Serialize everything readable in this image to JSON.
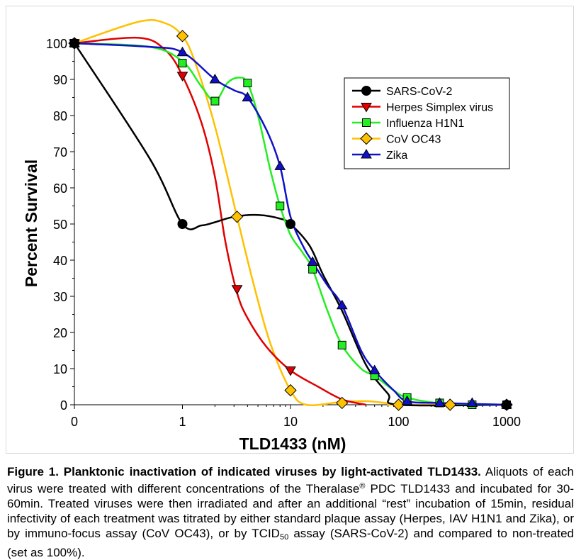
{
  "colors": {
    "SARS-CoV-2": "#000000",
    "Herpes Simplex  virus": "#e00000",
    "Influenza  H1N1": "#22ee22",
    "CoV OC43": "#ffc000",
    "Zika": "#1010c8"
  },
  "chart_data": {
    "type": "scatter",
    "xlabel": "TLD1433 (nM)",
    "ylabel": "Percent  Survival",
    "xscale": "log (0 shown at far left)",
    "xticks": [
      "0",
      "1",
      "10",
      "100",
      "1000"
    ],
    "yticks": [
      "0",
      "10",
      "20",
      "30",
      "40",
      "50",
      "60",
      "70",
      "80",
      "90",
      "100"
    ],
    "ylim": [
      0,
      100
    ],
    "legend_position": "upper right",
    "series": [
      {
        "name": "SARS-CoV-2",
        "marker": "circle",
        "points": [
          [
            0,
            100
          ],
          [
            1,
            50
          ],
          [
            10,
            50
          ],
          [
            1000,
            0
          ]
        ]
      },
      {
        "name": "Herpes Simplex  virus",
        "marker": "triangle-down",
        "points": [
          [
            0,
            100
          ],
          [
            1,
            91
          ],
          [
            3.2,
            32
          ],
          [
            10,
            9.5
          ]
        ]
      },
      {
        "name": "Influenza  H1N1",
        "marker": "square",
        "points": [
          [
            0,
            100
          ],
          [
            1,
            94.5
          ],
          [
            2,
            84
          ],
          [
            4,
            89
          ],
          [
            8,
            55
          ],
          [
            16,
            37.5
          ],
          [
            30,
            16.5
          ],
          [
            60,
            8
          ],
          [
            120,
            2
          ],
          [
            240,
            0.5
          ],
          [
            480,
            0
          ],
          [
            1000,
            0
          ]
        ]
      },
      {
        "name": "CoV OC43",
        "marker": "diamond",
        "points": [
          [
            0,
            100
          ],
          [
            1,
            102
          ],
          [
            3.2,
            52
          ],
          [
            10,
            4
          ],
          [
            30,
            0.5
          ],
          [
            100,
            0
          ],
          [
            300,
            0
          ],
          [
            1000,
            0
          ]
        ]
      },
      {
        "name": "Zika",
        "marker": "triangle-up",
        "points": [
          [
            0,
            100
          ],
          [
            1,
            97.5
          ],
          [
            2,
            90
          ],
          [
            4,
            85
          ],
          [
            8,
            66
          ],
          [
            16,
            39.5
          ],
          [
            30,
            27.5
          ],
          [
            60,
            9.5
          ],
          [
            120,
            1
          ],
          [
            240,
            0.5
          ],
          [
            480,
            0.5
          ],
          [
            1000,
            0
          ]
        ]
      }
    ],
    "curves": {
      "SARS-CoV-2": [
        [
          0,
          100
        ],
        [
          0.5,
          68
        ],
        [
          1,
          50
        ],
        [
          1.5,
          49.6
        ],
        [
          2,
          50.5
        ],
        [
          3,
          52
        ],
        [
          5,
          52.5
        ],
        [
          8,
          51.5
        ],
        [
          10,
          50
        ],
        [
          15,
          44
        ],
        [
          20,
          36
        ],
        [
          30,
          26
        ],
        [
          50,
          11
        ],
        [
          80,
          3
        ],
        [
          100,
          0
        ],
        [
          1000,
          0
        ]
      ],
      "Herpes Simplex  virus": [
        [
          0,
          100
        ],
        [
          0.4,
          101.5
        ],
        [
          0.7,
          98
        ],
        [
          1,
          91
        ],
        [
          1.5,
          78
        ],
        [
          2,
          63
        ],
        [
          2.5,
          45
        ],
        [
          3.2,
          31
        ],
        [
          4,
          24
        ],
        [
          6,
          16
        ],
        [
          10,
          9.5
        ],
        [
          18,
          5
        ],
        [
          30,
          1.5
        ],
        [
          50,
          0
        ]
      ],
      "Influenza  H1N1": [
        [
          0,
          100
        ],
        [
          0.5,
          99
        ],
        [
          1,
          95
        ],
        [
          1.5,
          88
        ],
        [
          2,
          84
        ],
        [
          2.6,
          89
        ],
        [
          3.3,
          90.5
        ],
        [
          4,
          89
        ],
        [
          5,
          80
        ],
        [
          6.5,
          65
        ],
        [
          8,
          55
        ],
        [
          10,
          47
        ],
        [
          13,
          42
        ],
        [
          16,
          37.5
        ],
        [
          22,
          26
        ],
        [
          30,
          16.5
        ],
        [
          45,
          10
        ],
        [
          60,
          8
        ],
        [
          90,
          4
        ],
        [
          120,
          2
        ],
        [
          240,
          0.5
        ],
        [
          1000,
          0
        ]
      ],
      "CoV OC43": [
        [
          0,
          100
        ],
        [
          0.4,
          106
        ],
        [
          0.7,
          105.5
        ],
        [
          1,
          102
        ],
        [
          1.3,
          95
        ],
        [
          2,
          77
        ],
        [
          3.2,
          52
        ],
        [
          4.5,
          34
        ],
        [
          6.5,
          17
        ],
        [
          10,
          4
        ],
        [
          14,
          0
        ],
        [
          30,
          0.8
        ],
        [
          50,
          1
        ],
        [
          80,
          0.4
        ],
        [
          100,
          0
        ],
        [
          1000,
          0
        ]
      ],
      "Zika": [
        [
          0,
          100
        ],
        [
          0.5,
          99
        ],
        [
          1,
          97.5
        ],
        [
          2,
          90
        ],
        [
          3,
          87
        ],
        [
          4,
          85
        ],
        [
          6,
          76
        ],
        [
          8,
          66
        ],
        [
          10,
          52
        ],
        [
          13,
          44
        ],
        [
          16,
          39.5
        ],
        [
          22,
          33
        ],
        [
          30,
          27.5
        ],
        [
          45,
          15
        ],
        [
          60,
          9.5
        ],
        [
          90,
          4
        ],
        [
          120,
          1
        ],
        [
          240,
          0.5
        ],
        [
          1000,
          0
        ]
      ]
    }
  },
  "legend_order": [
    "SARS-CoV-2",
    "Herpes Simplex  virus",
    "Influenza  H1N1",
    "CoV OC43",
    "Zika"
  ],
  "caption": {
    "title": "Figure 1. Planktonic inactivation of indicated viruses by light-activated TLD1433.",
    "text_a": " Aliquots of each virus were treated with different concentrations of the Theralase",
    "reg": "®",
    "text_b": " PDC TLD1433 and incubated for 30-60min. Treated viruses were then irradiated and after an additional “rest” incubation of 15min, residual infectivity of each treatment was titrated by either standard plaque assay (Herpes, IAV H1N1 and Zika), or by immuno-focus assay (CoV OC43), or by TCID",
    "sub": "50",
    "text_c": " assay (SARS-CoV-2) and compared to non-treated (set as 100%)."
  }
}
